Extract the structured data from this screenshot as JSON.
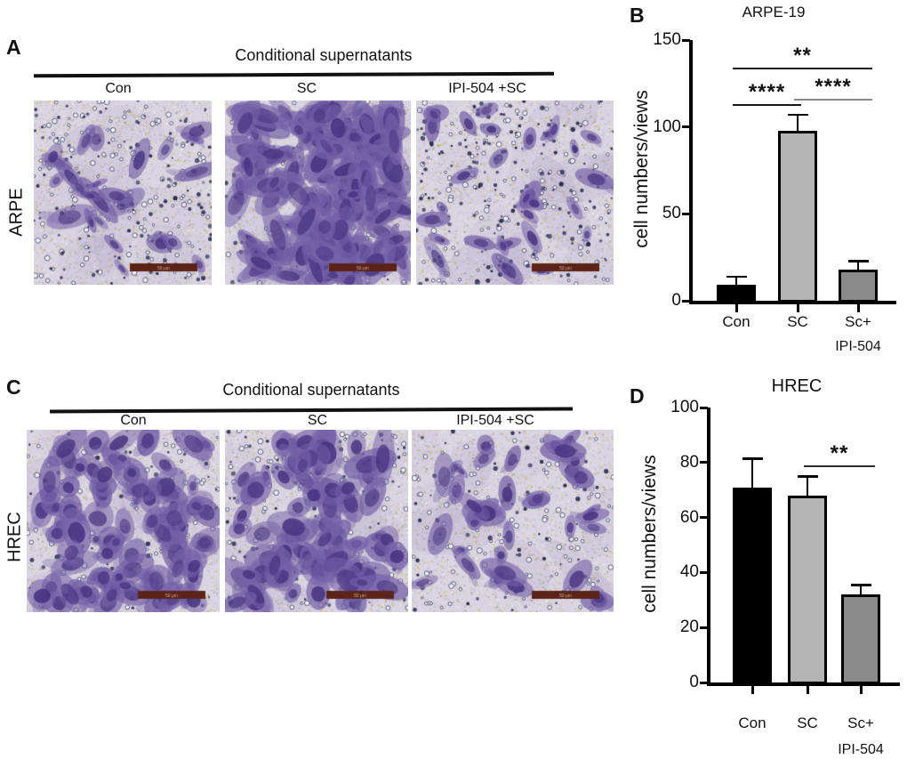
{
  "figure": {
    "panels": {
      "a": {
        "label": "A",
        "header": "Conditional supernatants",
        "columns": [
          "Con",
          "SC",
          "IPI-504 +SC"
        ],
        "row_label": "ARPE",
        "scale_bar_label": "50 μm",
        "images": [
          {
            "column": "Con",
            "density": "sparse migrated cells",
            "cells": 26,
            "pores": 150,
            "dark_dots": 120,
            "cell_radius": 8,
            "elongation": 2.4,
            "seed": 11
          },
          {
            "column": "SC",
            "density": "dense migrated cells",
            "cells": 140,
            "pores": 110,
            "dark_dots": 60,
            "cell_radius": 10,
            "elongation": 2.3,
            "seed": 22
          },
          {
            "column": "IPI-504 +SC",
            "density": "sparse migrated cells",
            "cells": 30,
            "pores": 140,
            "dark_dots": 180,
            "cell_radius": 7,
            "elongation": 2.0,
            "seed": 33
          }
        ]
      },
      "c": {
        "label": "C",
        "header": "Conditional supernatants",
        "columns": [
          "Con",
          "SC",
          "IPI-504 +SC"
        ],
        "row_label": "HREC",
        "scale_bar_label": "50 μm",
        "images": [
          {
            "column": "Con",
            "density": "dense migrated cells",
            "cells": 95,
            "pores": 120,
            "dark_dots": 60,
            "cell_radius": 11,
            "elongation": 1.5,
            "seed": 44
          },
          {
            "column": "SC",
            "density": "dense migrated cells",
            "cells": 80,
            "pores": 130,
            "dark_dots": 90,
            "cell_radius": 12,
            "elongation": 1.6,
            "seed": 55
          },
          {
            "column": "IPI-504 +SC",
            "density": "moderate migrated cells",
            "cells": 38,
            "pores": 130,
            "dark_dots": 70,
            "cell_radius": 10,
            "elongation": 1.7,
            "seed": 66
          }
        ]
      }
    }
  },
  "chart_data": [
    {
      "id": "b",
      "type": "bar",
      "panel_label": "B",
      "title": "ARPE-19",
      "ylabel": "cell numbers/views",
      "categories": [
        "Con",
        "SC",
        "Sc+"
      ],
      "x_sub_label": "IPI-504",
      "values": [
        9,
        98,
        18
      ],
      "errors": [
        5,
        9,
        5
      ],
      "bar_colors": [
        "#000000",
        "#b4b4b4",
        "#8a8a8a"
      ],
      "ylim": [
        0,
        150
      ],
      "yticks": [
        0,
        50,
        100,
        150
      ],
      "grid": false,
      "significance": [
        {
          "from": 0,
          "to": 2,
          "label": "**",
          "y": 134,
          "line_color": "#1a1a1a"
        },
        {
          "from": 0,
          "to": 1,
          "label": "****",
          "y": 113,
          "line_color": "#1a1a1a"
        },
        {
          "from": 1,
          "to": 2,
          "label": "****",
          "y": 116,
          "line_color": "#8a8a8a"
        }
      ]
    },
    {
      "id": "d",
      "type": "bar",
      "panel_label": "D",
      "title": "HREC",
      "ylabel": "cell numbers/views",
      "categories": [
        "Con",
        "SC",
        "Sc+"
      ],
      "x_sub_label": "IPI-504",
      "values": [
        71,
        68,
        32
      ],
      "errors": [
        10.5,
        7,
        3.5
      ],
      "bar_colors": [
        "#000000",
        "#b4b4b4",
        "#8a8a8a"
      ],
      "ylim": [
        0,
        100
      ],
      "yticks": [
        0,
        20,
        40,
        60,
        80,
        100
      ],
      "grid": false,
      "significance": [
        {
          "from": 1,
          "to": 2,
          "label": "**",
          "y": 79,
          "line_color": "#2a2a2a"
        }
      ]
    }
  ]
}
